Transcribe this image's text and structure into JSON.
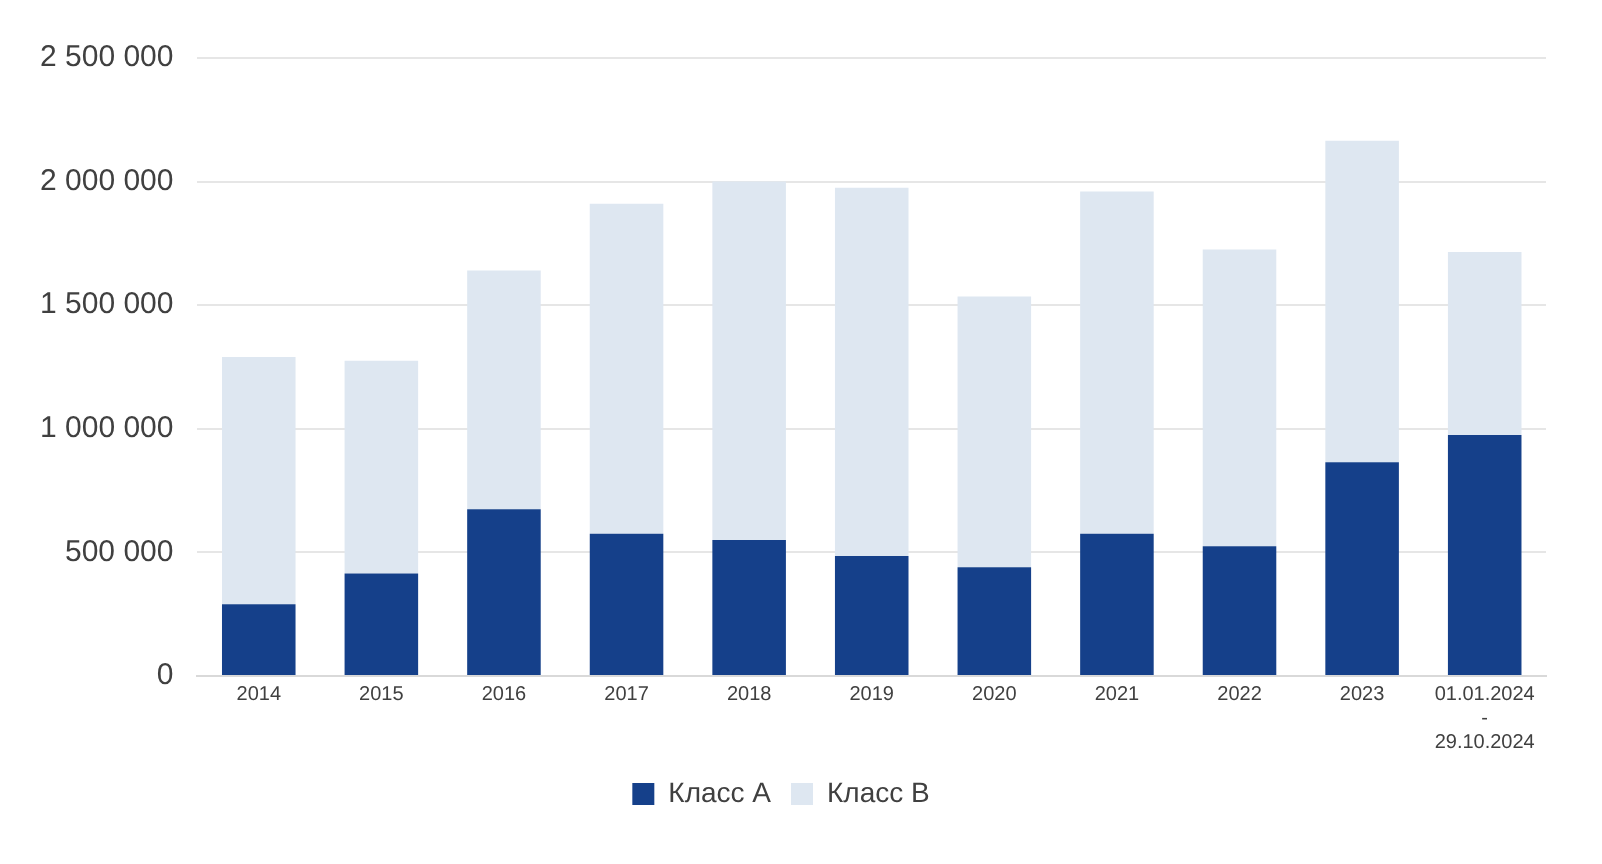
{
  "chart_data": {
    "type": "bar",
    "stacked": true,
    "categories": [
      "2014",
      "2015",
      "2016",
      "2017",
      "2018",
      "2019",
      "2020",
      "2021",
      "2022",
      "2023",
      "01.01.2024\n-\n29.10.2024"
    ],
    "series": [
      {
        "name": "Класс А",
        "color": "#15408a",
        "values": [
          290000,
          415000,
          675000,
          575000,
          550000,
          485000,
          440000,
          575000,
          525000,
          865000,
          975000
        ]
      },
      {
        "name": "Класс В",
        "color": "#dee7f1",
        "values": [
          1000000,
          860000,
          965000,
          1335000,
          1450000,
          1490000,
          1095000,
          1385000,
          1200000,
          1300000,
          740000
        ]
      }
    ],
    "ylim": [
      0,
      2500000
    ],
    "yticks": [
      {
        "value": 0,
        "label": "0"
      },
      {
        "value": 500000,
        "label": "500 000"
      },
      {
        "value": 1000000,
        "label": "1 000 000"
      },
      {
        "value": 1500000,
        "label": "1 500 000"
      },
      {
        "value": 2000000,
        "label": "2 000 000"
      },
      {
        "value": 2500000,
        "label": "2 500 000"
      }
    ],
    "grid": "y",
    "legend": "bottom"
  }
}
